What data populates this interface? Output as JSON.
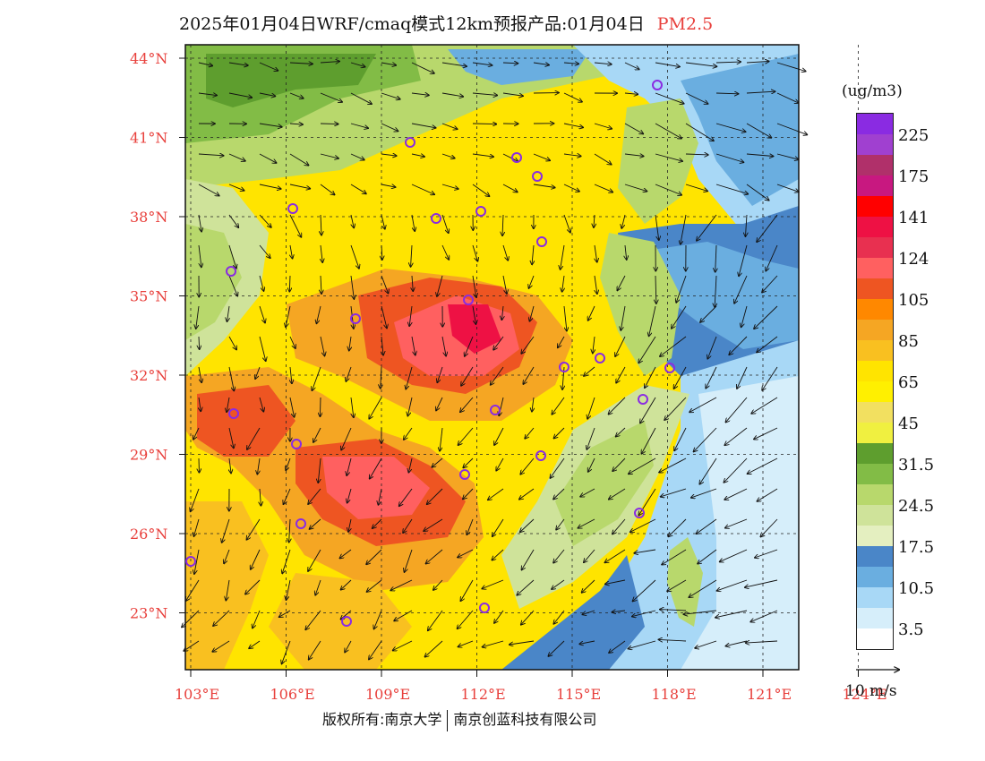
{
  "title": {
    "main": "2025年01月04日WRF/cmaq模式12km预报产品:01月04日",
    "species": "PM2.5"
  },
  "axes": {
    "lat_labels": [
      "44°N",
      "41°N",
      "38°N",
      "35°N",
      "32°N",
      "29°N",
      "26°N",
      "23°N"
    ],
    "lon_labels": [
      "103°E",
      "106°E",
      "109°E",
      "112°E",
      "115°E",
      "118°E",
      "121°E",
      "124°E"
    ]
  },
  "legend": {
    "unit": "(ug/m3)",
    "colors": [
      "#8a2be2",
      "#a040d0",
      "#b0306a",
      "#c81880",
      "#ff0000",
      "#ee1144",
      "#e83050",
      "#ff6060",
      "#ee5522",
      "#ff8800",
      "#f5a623",
      "#f9c020",
      "#ffe400",
      "#fff000",
      "#f2e060",
      "#f0f040",
      "#5e9e2e",
      "#82bc46",
      "#b8d86c",
      "#cfe39a",
      "#e4efc0",
      "#4a86c8",
      "#6aaee0",
      "#a8d8f6",
      "#d6eefa",
      "#ffffff"
    ],
    "labels": [
      "225",
      "175",
      "141",
      "124",
      "105",
      "85",
      "65",
      "45",
      "31.5",
      "24.5",
      "17.5",
      "10.5",
      "3.5"
    ]
  },
  "wind_scale": {
    "label": "10 m/s"
  },
  "footer": {
    "left": "版权所有:南京大学",
    "right": "南京创蓝科技有限公司"
  }
}
